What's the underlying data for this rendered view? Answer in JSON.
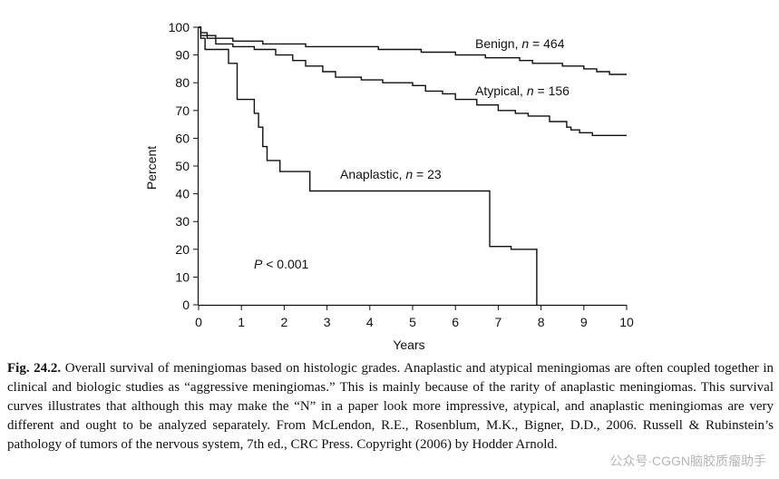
{
  "chart_data": {
    "type": "line",
    "subtype": "kaplan-meier step survival curves",
    "xlabel": "Years",
    "ylabel": "Percent",
    "xlim": [
      0,
      10
    ],
    "ylim": [
      0,
      100
    ],
    "xticks": [
      0,
      1,
      2,
      3,
      4,
      5,
      6,
      7,
      8,
      9,
      10
    ],
    "yticks": [
      0,
      10,
      20,
      30,
      40,
      50,
      60,
      70,
      80,
      90,
      100
    ],
    "grid": false,
    "annotation": "P < 0.001",
    "series": [
      {
        "name": "Benign, n = 464",
        "name_prefix": "Benign, ",
        "name_n": "n",
        "name_suffix": " = 464",
        "points": [
          [
            0,
            100
          ],
          [
            0.05,
            98
          ],
          [
            0.2,
            97
          ],
          [
            0.4,
            96
          ],
          [
            0.8,
            95
          ],
          [
            1.5,
            94
          ],
          [
            2.5,
            93
          ],
          [
            3.5,
            93
          ],
          [
            4.2,
            92
          ],
          [
            5.2,
            91
          ],
          [
            6,
            90
          ],
          [
            6.7,
            89
          ],
          [
            7.5,
            88
          ],
          [
            7.8,
            87
          ],
          [
            8.5,
            86
          ],
          [
            9,
            85
          ],
          [
            9.3,
            84
          ],
          [
            9.6,
            83
          ],
          [
            10,
            83
          ]
        ]
      },
      {
        "name": "Atypical, n = 156",
        "name_prefix": "Atypical, ",
        "name_n": "n",
        "name_suffix": " = 156",
        "points": [
          [
            0,
            100
          ],
          [
            0.05,
            97
          ],
          [
            0.2,
            96
          ],
          [
            0.4,
            94
          ],
          [
            0.8,
            93
          ],
          [
            1.3,
            92
          ],
          [
            1.8,
            90
          ],
          [
            2.2,
            88
          ],
          [
            2.5,
            86
          ],
          [
            2.9,
            84
          ],
          [
            3.2,
            82
          ],
          [
            3.8,
            81
          ],
          [
            4.3,
            80
          ],
          [
            5,
            79
          ],
          [
            5.3,
            77
          ],
          [
            5.7,
            76
          ],
          [
            6,
            74
          ],
          [
            6.5,
            72
          ],
          [
            7,
            70
          ],
          [
            7.4,
            69
          ],
          [
            7.7,
            68
          ],
          [
            8.2,
            66
          ],
          [
            8.6,
            64
          ],
          [
            8.7,
            63
          ],
          [
            8.9,
            62
          ],
          [
            9.2,
            61
          ],
          [
            10,
            61
          ]
        ]
      },
      {
        "name": "Anaplastic, n = 23",
        "name_prefix": "Anaplastic, ",
        "name_n": "n",
        "name_suffix": " = 23",
        "points": [
          [
            0,
            100
          ],
          [
            0.05,
            96
          ],
          [
            0.15,
            92
          ],
          [
            0.7,
            87
          ],
          [
            0.9,
            74
          ],
          [
            1.3,
            69
          ],
          [
            1.4,
            64
          ],
          [
            1.5,
            57
          ],
          [
            1.6,
            52
          ],
          [
            1.9,
            48
          ],
          [
            2.6,
            41
          ],
          [
            6.8,
            21
          ],
          [
            7.3,
            20
          ],
          [
            7.9,
            0
          ]
        ]
      }
    ]
  },
  "caption": {
    "label": "Fig. 24.2.",
    "text": "Overall survival of meningiomas based on histologic grades. Anaplastic and atypical meningiomas are often coupled together in clinical and biologic studies as “aggressive meningiomas.” This is mainly because of the rarity of anaplastic meningiomas. This survival curves illustrates that although this may make the “N” in a paper look more impressive, atypical, and anaplastic meningiomas are very different and ought to be analyzed separately. From McLendon, R.E., Rosenblum, M.K., Bigner, D.D., 2006. Russell & Rubinstein’s pathology of tumors of the nervous system, 7th ed., CRC Press. Copyright (2006) by Hodder Arnold."
  },
  "watermark": "公众号·CGGN脑胶质瘤助手"
}
